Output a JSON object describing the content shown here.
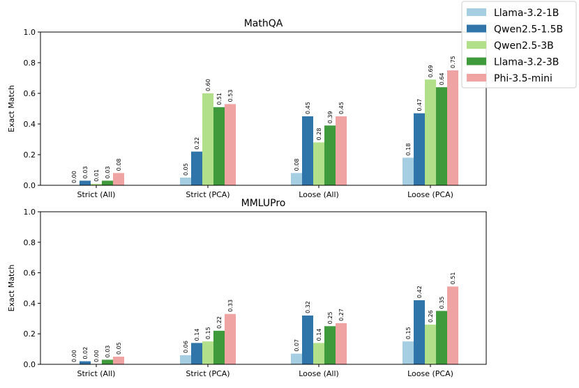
{
  "chart_data": [
    {
      "type": "bar",
      "title": "MathQA",
      "xlabel": "",
      "ylabel": "Exact Match",
      "ylim": [
        0,
        1.0
      ],
      "yticks": [
        "0.0",
        "0.2",
        "0.4",
        "0.6",
        "0.8",
        "1.0"
      ],
      "categories": [
        "Strict (All)",
        "Strict (PCA)",
        "Loose (All)",
        "Loose (PCA)"
      ],
      "series": [
        {
          "name": "Llama-3.2-1B",
          "values": [
            0.0,
            0.05,
            0.08,
            0.18
          ],
          "labels": [
            "0.00",
            "0.05",
            "0.08",
            "0.18"
          ]
        },
        {
          "name": "Qwen2.5-1.5B",
          "values": [
            0.03,
            0.22,
            0.45,
            0.47
          ],
          "labels": [
            "0.03",
            "0.22",
            "0.45",
            "0.47"
          ]
        },
        {
          "name": "Qwen2.5-3B",
          "values": [
            0.01,
            0.6,
            0.28,
            0.69
          ],
          "labels": [
            "0.01",
            "0.60",
            "0.28",
            "0.69"
          ]
        },
        {
          "name": "Llama-3.2-3B",
          "values": [
            0.03,
            0.51,
            0.39,
            0.64
          ],
          "labels": [
            "0.03",
            "0.51",
            "0.39",
            "0.64"
          ]
        },
        {
          "name": "Phi-3.5-mini",
          "values": [
            0.08,
            0.53,
            0.45,
            0.75
          ],
          "labels": [
            "0.08",
            "0.53",
            "0.45",
            "0.75"
          ]
        }
      ]
    },
    {
      "type": "bar",
      "title": "MMLUPro",
      "xlabel": "",
      "ylabel": "Exact Match",
      "ylim": [
        0,
        1.0
      ],
      "yticks": [
        "0.0",
        "0.2",
        "0.4",
        "0.6",
        "0.8",
        "1.0"
      ],
      "categories": [
        "Strict (All)",
        "Strict (PCA)",
        "Loose (All)",
        "Loose (PCA)"
      ],
      "series": [
        {
          "name": "Llama-3.2-1B",
          "values": [
            0.0,
            0.06,
            0.07,
            0.15
          ],
          "labels": [
            "0.00",
            "0.06",
            "0.07",
            "0.15"
          ]
        },
        {
          "name": "Qwen2.5-1.5B",
          "values": [
            0.02,
            0.14,
            0.32,
            0.42
          ],
          "labels": [
            "0.02",
            "0.14",
            "0.32",
            "0.42"
          ]
        },
        {
          "name": "Qwen2.5-3B",
          "values": [
            0.0,
            0.15,
            0.14,
            0.26
          ],
          "labels": [
            "0.00",
            "0.15",
            "0.14",
            "0.26"
          ]
        },
        {
          "name": "Llama-3.2-3B",
          "values": [
            0.03,
            0.22,
            0.25,
            0.35
          ],
          "labels": [
            "0.03",
            "0.22",
            "0.25",
            "0.35"
          ]
        },
        {
          "name": "Phi-3.5-mini",
          "values": [
            0.05,
            0.33,
            0.27,
            0.51
          ],
          "labels": [
            "0.05",
            "0.33",
            "0.27",
            "0.51"
          ]
        }
      ]
    }
  ],
  "legend": {
    "placement": "top-right",
    "entries": [
      "Llama-3.2-1B",
      "Qwen2.5-1.5B",
      "Qwen2.5-3B",
      "Llama-3.2-3B",
      "Phi-3.5-mini"
    ]
  },
  "colors": {
    "Llama-3.2-1B": "#a6cee3",
    "Qwen2.5-1.5B": "#2f75aa",
    "Qwen2.5-3B": "#b2df8a",
    "Llama-3.2-3B": "#3f9a3b",
    "Phi-3.5-mini": "#f0a3a3"
  }
}
